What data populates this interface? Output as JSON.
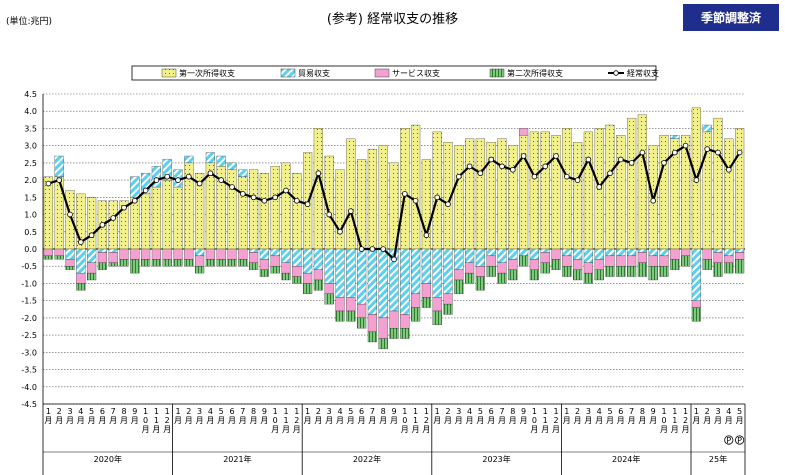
{
  "header": {
    "unit": "(単位:兆円)",
    "title": "(参考) 経常収支の推移",
    "badge": "季節調整済"
  },
  "colors": {
    "primary": "#f2f08a",
    "trade": "#5ad0ee",
    "services": "#f4a0d0",
    "secondary": "#7fc97f",
    "current": "#000000",
    "badge": "#1f2d8c"
  },
  "chart_data": {
    "type": "bar",
    "stacked": true,
    "ylim": [
      -4.5,
      4.5
    ],
    "y_ticks": [
      "4.5",
      "4.0",
      "3.5",
      "3.0",
      "2.5",
      "2.0",
      "1.5",
      "1.0",
      "0.5",
      "0.0",
      "-0.5",
      "-1.0",
      "-1.5",
      "-2.0",
      "-2.5",
      "-3.0",
      "-3.5",
      "-4.0",
      "-4.5"
    ],
    "grid": true,
    "legend_position": "top",
    "categories": [
      "2020-1",
      "2020-2",
      "2020-3",
      "2020-4",
      "2020-5",
      "2020-6",
      "2020-7",
      "2020-8",
      "2020-9",
      "2020-10",
      "2020-11",
      "2020-12",
      "2021-1",
      "2021-2",
      "2021-3",
      "2021-4",
      "2021-5",
      "2021-6",
      "2021-7",
      "2021-8",
      "2021-9",
      "2021-10",
      "2021-11",
      "2021-12",
      "2022-1",
      "2022-2",
      "2022-3",
      "2022-4",
      "2022-5",
      "2022-6",
      "2022-7",
      "2022-8",
      "2022-9",
      "2022-10",
      "2022-11",
      "2022-12",
      "2023-1",
      "2023-2",
      "2023-3",
      "2023-4",
      "2023-5",
      "2023-6",
      "2023-7",
      "2023-8",
      "2023-9",
      "2023-10",
      "2023-11",
      "2023-12",
      "2024-1",
      "2024-2",
      "2024-3",
      "2024-4",
      "2024-5",
      "2024-6",
      "2024-7",
      "2024-8",
      "2024-9",
      "2024-10",
      "2024-11",
      "2024-12",
      "2025-1",
      "2025-2",
      "2025-3",
      "2025-4",
      "2025-5"
    ],
    "month_labels": [
      [
        "1",
        "月"
      ],
      [
        "2",
        "月"
      ],
      [
        "3",
        "月"
      ],
      [
        "4",
        "月"
      ],
      [
        "5",
        "月"
      ],
      [
        "6",
        "月"
      ],
      [
        "7",
        "月"
      ],
      [
        "8",
        "月"
      ],
      [
        "9",
        "月"
      ],
      [
        "1",
        "0",
        "月"
      ],
      [
        "1",
        "1",
        "月"
      ],
      [
        "1",
        "2",
        "月"
      ],
      [
        "1",
        "月"
      ],
      [
        "2",
        "月"
      ],
      [
        "3",
        "月"
      ],
      [
        "4",
        "月"
      ],
      [
        "5",
        "月"
      ],
      [
        "6",
        "月"
      ],
      [
        "7",
        "月"
      ],
      [
        "8",
        "月"
      ],
      [
        "9",
        "月"
      ],
      [
        "1",
        "0",
        "月"
      ],
      [
        "1",
        "1",
        "月"
      ],
      [
        "1",
        "2",
        "月"
      ],
      [
        "1",
        "月"
      ],
      [
        "2",
        "月"
      ],
      [
        "3",
        "月"
      ],
      [
        "4",
        "月"
      ],
      [
        "5",
        "月"
      ],
      [
        "6",
        "月"
      ],
      [
        "7",
        "月"
      ],
      [
        "8",
        "月"
      ],
      [
        "9",
        "月"
      ],
      [
        "1",
        "0",
        "月"
      ],
      [
        "1",
        "1",
        "月"
      ],
      [
        "1",
        "2",
        "月"
      ],
      [
        "1",
        "月"
      ],
      [
        "2",
        "月"
      ],
      [
        "3",
        "月"
      ],
      [
        "4",
        "月"
      ],
      [
        "5",
        "月"
      ],
      [
        "6",
        "月"
      ],
      [
        "7",
        "月"
      ],
      [
        "8",
        "月"
      ],
      [
        "9",
        "月"
      ],
      [
        "1",
        "0",
        "月"
      ],
      [
        "1",
        "1",
        "月"
      ],
      [
        "1",
        "2",
        "月"
      ],
      [
        "1",
        "月"
      ],
      [
        "2",
        "月"
      ],
      [
        "3",
        "月"
      ],
      [
        "4",
        "月"
      ],
      [
        "5",
        "月"
      ],
      [
        "6",
        "月"
      ],
      [
        "7",
        "月"
      ],
      [
        "8",
        "月"
      ],
      [
        "9",
        "月"
      ],
      [
        "1",
        "0",
        "月"
      ],
      [
        "1",
        "1",
        "月"
      ],
      [
        "1",
        "2",
        "月"
      ],
      [
        "1",
        "月"
      ],
      [
        "2",
        "月"
      ],
      [
        "3",
        "月"
      ],
      [
        "4",
        "月"
      ],
      [
        "5",
        "月"
      ]
    ],
    "years": [
      {
        "label": "2020年",
        "start": 0,
        "count": 12
      },
      {
        "label": "2021年",
        "start": 12,
        "count": 12
      },
      {
        "label": "2022年",
        "start": 24,
        "count": 12
      },
      {
        "label": "2023年",
        "start": 36,
        "count": 12
      },
      {
        "label": "2024年",
        "start": 48,
        "count": 12
      },
      {
        "label": "25年",
        "start": 60,
        "count": 5
      }
    ],
    "preliminary_marks": [
      {
        "index": 63,
        "label": "P"
      },
      {
        "index": 64,
        "label": "P"
      }
    ],
    "series": [
      {
        "name": "第一次所得収支",
        "key": "primary",
        "values": [
          2.1,
          2.1,
          1.7,
          1.6,
          1.5,
          1.4,
          1.4,
          1.4,
          1.5,
          1.6,
          1.8,
          2.0,
          1.8,
          2.5,
          2.2,
          2.5,
          2.4,
          2.3,
          2.1,
          2.3,
          2.2,
          2.4,
          2.5,
          2.2,
          2.8,
          3.5,
          2.7,
          2.3,
          3.2,
          2.6,
          2.9,
          3.0,
          2.5,
          3.5,
          3.6,
          2.6,
          3.4,
          3.1,
          3.0,
          3.2,
          3.2,
          3.1,
          3.2,
          3.0,
          3.3,
          3.4,
          3.4,
          3.3,
          3.5,
          3.1,
          3.4,
          3.5,
          3.6,
          3.3,
          3.8,
          3.9,
          3.0,
          3.3,
          3.2,
          3.3,
          4.1,
          3.4,
          3.8,
          3.2,
          3.5
        ]
      },
      {
        "name": "貿易収支",
        "key": "trade",
        "values": [
          0.0,
          0.6,
          -0.3,
          -0.7,
          -0.4,
          -0.1,
          -0.1,
          -0.0,
          0.6,
          0.6,
          0.6,
          0.6,
          0.5,
          0.2,
          -0.2,
          0.3,
          0.3,
          0.2,
          0.2,
          -0.1,
          -0.3,
          -0.2,
          -0.4,
          -0.5,
          -0.7,
          -0.6,
          -1.0,
          -1.4,
          -1.4,
          -1.6,
          -1.9,
          -2.0,
          -1.8,
          -1.9,
          -1.3,
          -1.0,
          -1.4,
          -1.3,
          -0.6,
          -0.4,
          -0.5,
          -0.2,
          -0.4,
          -0.3,
          -0.2,
          -0.3,
          -0.1,
          -0.0,
          -0.2,
          -0.3,
          -0.4,
          -0.3,
          -0.2,
          -0.2,
          -0.2,
          -0.1,
          -0.2,
          -0.2,
          0.1,
          0.0,
          -1.5,
          0.2,
          -0.1,
          -0.2,
          -0.1
        ]
      },
      {
        "name": "サービス収支",
        "key": "services",
        "values": [
          -0.2,
          -0.2,
          -0.2,
          -0.3,
          -0.3,
          -0.3,
          -0.3,
          -0.3,
          -0.3,
          -0.3,
          -0.3,
          -0.3,
          -0.3,
          -0.3,
          -0.3,
          -0.3,
          -0.3,
          -0.3,
          -0.3,
          -0.3,
          -0.3,
          -0.3,
          -0.3,
          -0.3,
          -0.3,
          -0.3,
          -0.3,
          -0.4,
          -0.4,
          -0.4,
          -0.5,
          -0.6,
          -0.5,
          -0.4,
          -0.4,
          -0.4,
          -0.4,
          -0.3,
          -0.3,
          -0.3,
          -0.3,
          -0.3,
          -0.3,
          -0.3,
          0.2,
          -0.3,
          -0.3,
          -0.3,
          -0.3,
          -0.3,
          -0.3,
          -0.3,
          -0.3,
          -0.3,
          -0.3,
          -0.3,
          -0.3,
          -0.3,
          -0.3,
          -0.2,
          -0.2,
          -0.3,
          -0.3,
          -0.2,
          -0.2
        ]
      },
      {
        "name": "第二次所得収支",
        "key": "secondary",
        "values": [
          -0.1,
          -0.1,
          -0.1,
          -0.2,
          -0.2,
          -0.2,
          -0.1,
          -0.2,
          -0.4,
          -0.2,
          -0.2,
          -0.2,
          -0.2,
          -0.2,
          -0.2,
          -0.2,
          -0.2,
          -0.2,
          -0.2,
          -0.2,
          -0.2,
          -0.2,
          -0.2,
          -0.2,
          -0.3,
          -0.3,
          -0.3,
          -0.3,
          -0.3,
          -0.3,
          -0.3,
          -0.3,
          -0.3,
          -0.3,
          -0.4,
          -0.3,
          -0.4,
          -0.3,
          -0.4,
          -0.3,
          -0.4,
          -0.3,
          -0.3,
          -0.3,
          -0.3,
          -0.3,
          -0.3,
          -0.3,
          -0.3,
          -0.3,
          -0.3,
          -0.3,
          -0.3,
          -0.3,
          -0.3,
          -0.4,
          -0.4,
          -0.3,
          -0.3,
          -0.3,
          -0.4,
          -0.3,
          -0.4,
          -0.3,
          -0.4
        ]
      },
      {
        "name": "経常収支",
        "key": "current",
        "type": "line",
        "values": [
          1.9,
          2.0,
          1.0,
          0.2,
          0.4,
          0.7,
          0.9,
          1.2,
          1.4,
          1.7,
          2.0,
          2.1,
          2.0,
          2.1,
          1.9,
          2.2,
          2.0,
          1.8,
          1.6,
          1.5,
          1.4,
          1.5,
          1.7,
          1.4,
          1.3,
          2.2,
          1.0,
          0.5,
          1.1,
          0.0,
          0.0,
          0.0,
          -0.3,
          1.6,
          1.4,
          0.4,
          1.5,
          1.3,
          2.1,
          2.4,
          2.2,
          2.6,
          2.4,
          2.3,
          2.7,
          2.1,
          2.4,
          2.7,
          2.1,
          2.0,
          2.6,
          1.8,
          2.2,
          2.6,
          2.5,
          2.8,
          1.4,
          2.5,
          2.8,
          3.0,
          2.0,
          2.9,
          2.8,
          2.3,
          2.8
        ]
      }
    ]
  }
}
